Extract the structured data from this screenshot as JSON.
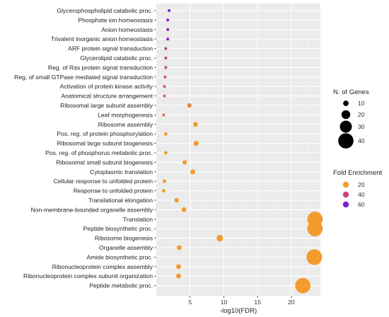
{
  "chart_data": {
    "type": "scatter",
    "xlabel": "-log10(FDR)",
    "ylabel": "",
    "xlim": [
      0,
      24.3
    ],
    "x_ticks": [
      5,
      10,
      15,
      20
    ],
    "grid": true,
    "legend_placement": "right",
    "size_legend": {
      "title": "N. of Genes",
      "values": [
        10,
        20,
        30,
        40
      ]
    },
    "color_legend": {
      "title": "Fold Enrichment",
      "values": [
        20,
        40,
        60
      ],
      "colors": [
        "#F39B2C",
        "#D0407E",
        "#7B1FD6"
      ]
    },
    "categories": [
      "Glycerophospholipid catabolic proc.",
      "Phosphate ion homeostasis",
      "Anion homeostasis",
      "Trivalent inorganic anion homeostasis",
      "ARF protein signal transduction",
      "Glycerolipid catabolic proc.",
      "Reg. of Ras protein signal transduction",
      "Reg. of small GTPase mediated signal transduction",
      "Activation of protein kinase activity",
      "Anatomical structure arrangement",
      "Ribosomal large subunit assembly",
      "Leaf morphogenesis",
      "Ribosome assembly",
      "Pos. reg. of protein phosphorylation",
      "Ribosomal large subunit biogenesis",
      "Pos. reg. of phosphorus metabolic proc.",
      "Ribosomal small subunit biogenesis",
      "Cytoplasmic translation",
      "Cellular response to unfolded protein",
      "Response to unfolded protein",
      "Translational elongation",
      "Non-membrane-bounded organelle assembly",
      "Translation",
      "Peptide biosynthetic proc.",
      "Ribosome biogenesis",
      "Organelle assembly",
      "Amide biosynthetic proc.",
      "Ribonucleoprotein complex assembly",
      "Ribonucleoprotein complex subunit organization",
      "Peptide metabolic proc."
    ],
    "points": [
      {
        "x": 1.9,
        "genes": 2,
        "fold": 68
      },
      {
        "x": 1.7,
        "genes": 2,
        "fold": 60
      },
      {
        "x": 1.7,
        "genes": 2,
        "fold": 58
      },
      {
        "x": 1.7,
        "genes": 2,
        "fold": 62
      },
      {
        "x": 1.4,
        "genes": 2,
        "fold": 45
      },
      {
        "x": 1.4,
        "genes": 2,
        "fold": 42
      },
      {
        "x": 1.4,
        "genes": 2,
        "fold": 40
      },
      {
        "x": 1.3,
        "genes": 2,
        "fold": 38
      },
      {
        "x": 1.2,
        "genes": 2,
        "fold": 36
      },
      {
        "x": 1.2,
        "genes": 2,
        "fold": 32
      },
      {
        "x": 4.9,
        "genes": 7,
        "fold": 24
      },
      {
        "x": 1.1,
        "genes": 2,
        "fold": 30
      },
      {
        "x": 5.8,
        "genes": 8,
        "fold": 18
      },
      {
        "x": 1.4,
        "genes": 4,
        "fold": 17
      },
      {
        "x": 5.9,
        "genes": 9,
        "fold": 18
      },
      {
        "x": 1.4,
        "genes": 4,
        "fold": 16
      },
      {
        "x": 4.2,
        "genes": 7,
        "fold": 16
      },
      {
        "x": 5.4,
        "genes": 8,
        "fold": 15
      },
      {
        "x": 1.2,
        "genes": 4,
        "fold": 15
      },
      {
        "x": 1.1,
        "genes": 4,
        "fold": 14
      },
      {
        "x": 3.0,
        "genes": 7,
        "fold": 14
      },
      {
        "x": 4.1,
        "genes": 8,
        "fold": 13
      },
      {
        "x": 23.5,
        "genes": 40,
        "fold": 12
      },
      {
        "x": 23.5,
        "genes": 40,
        "fold": 12
      },
      {
        "x": 9.4,
        "genes": 13,
        "fold": 11
      },
      {
        "x": 3.4,
        "genes": 8,
        "fold": 10
      },
      {
        "x": 23.4,
        "genes": 41,
        "fold": 10
      },
      {
        "x": 3.3,
        "genes": 8,
        "fold": 10
      },
      {
        "x": 3.3,
        "genes": 8,
        "fold": 10
      },
      {
        "x": 21.7,
        "genes": 40,
        "fold": 10
      }
    ]
  }
}
